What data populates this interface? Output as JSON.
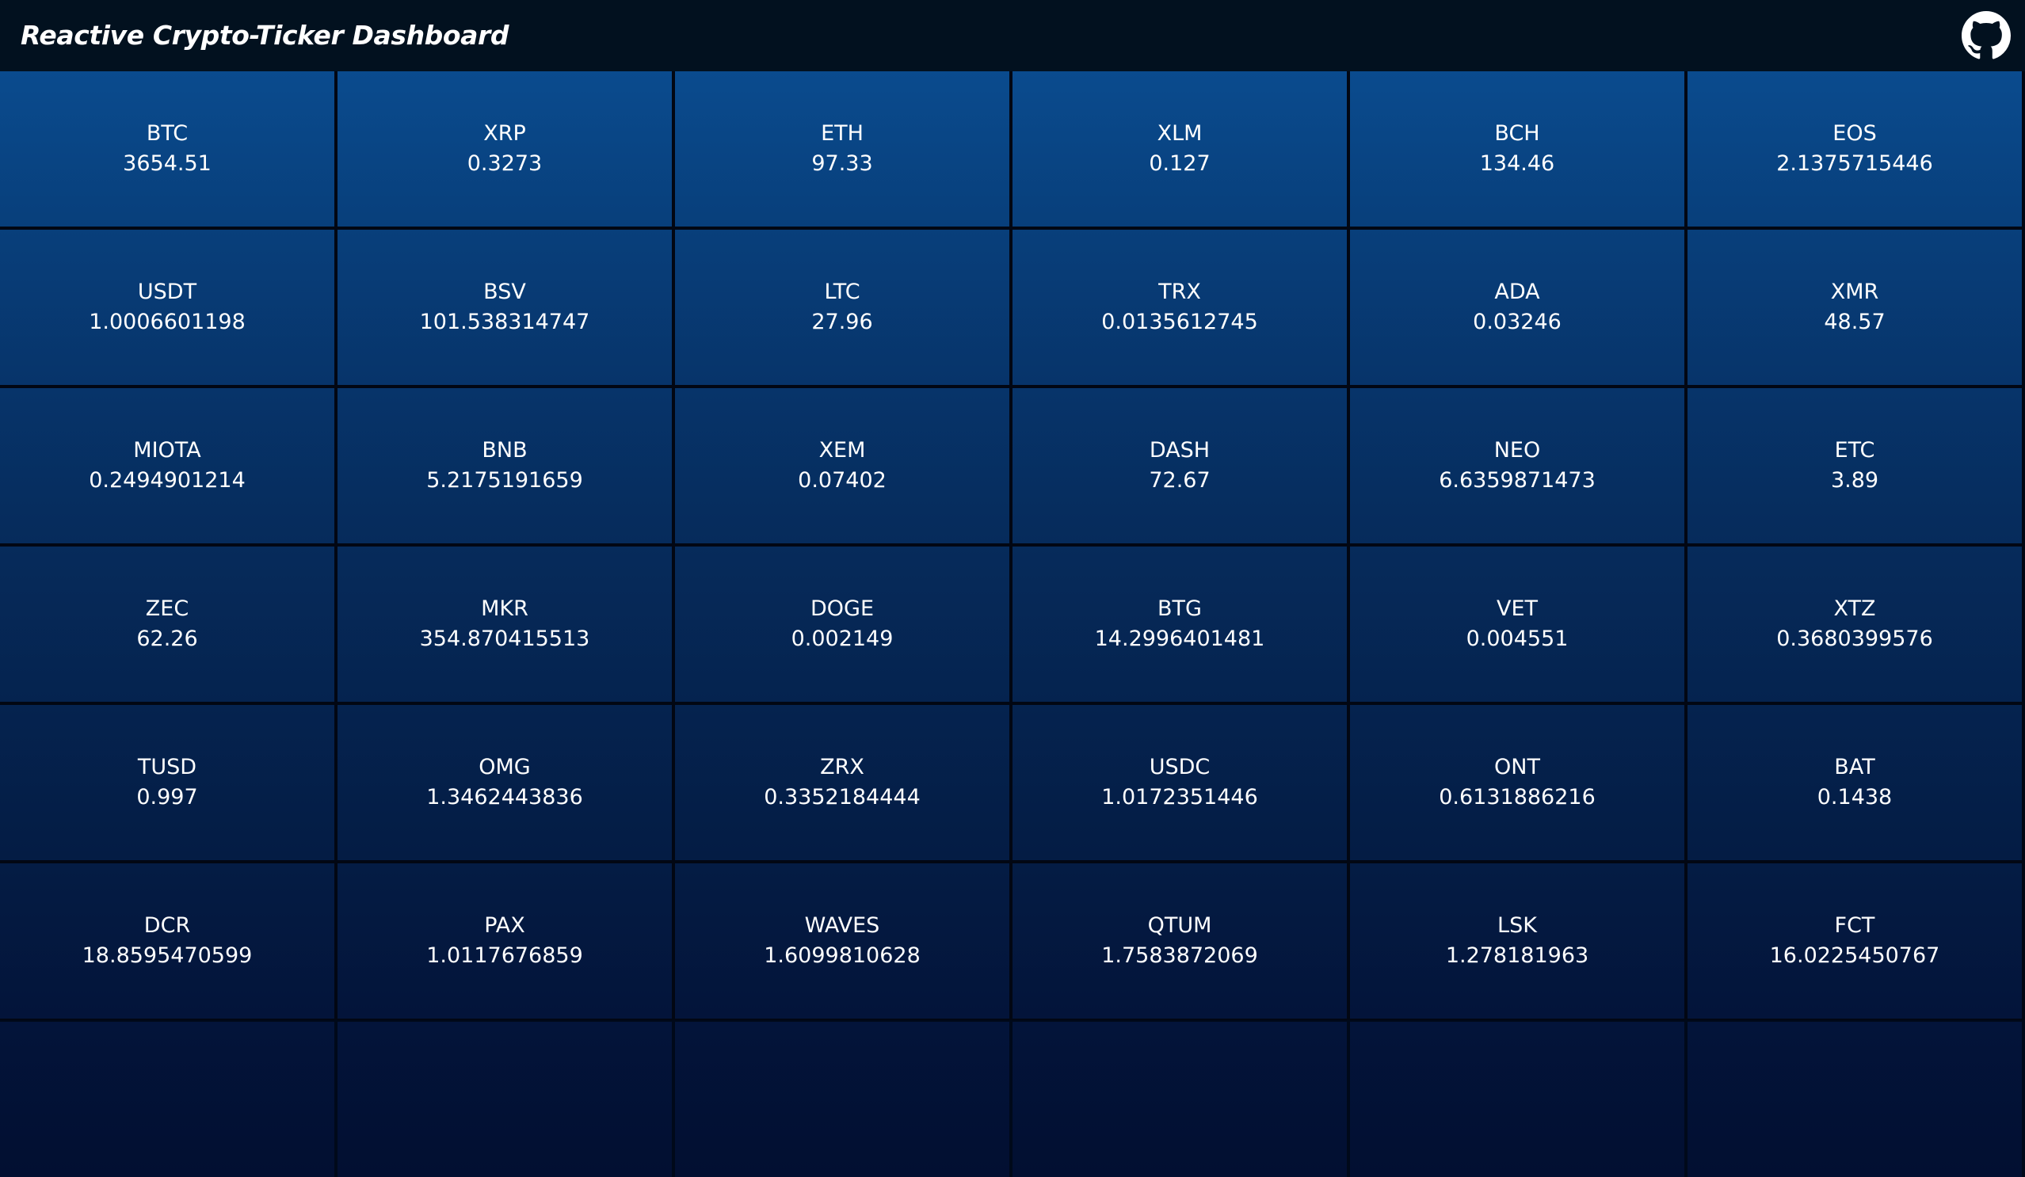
{
  "header": {
    "title": "Reactive Crypto-Ticker Dashboard",
    "github_icon": "github-icon"
  },
  "colors": {
    "header_bg": "#02111f",
    "tile_top": "#0a4b8e",
    "tile_bottom": "#020f31",
    "text": "#ffffff"
  },
  "tickers": [
    {
      "symbol": "BTC",
      "price": "3654.51"
    },
    {
      "symbol": "XRP",
      "price": "0.3273"
    },
    {
      "symbol": "ETH",
      "price": "97.33"
    },
    {
      "symbol": "XLM",
      "price": "0.127"
    },
    {
      "symbol": "BCH",
      "price": "134.46"
    },
    {
      "symbol": "EOS",
      "price": "2.1375715446"
    },
    {
      "symbol": "USDT",
      "price": "1.0006601198"
    },
    {
      "symbol": "BSV",
      "price": "101.538314747"
    },
    {
      "symbol": "LTC",
      "price": "27.96"
    },
    {
      "symbol": "TRX",
      "price": "0.0135612745"
    },
    {
      "symbol": "ADA",
      "price": "0.03246"
    },
    {
      "symbol": "XMR",
      "price": "48.57"
    },
    {
      "symbol": "MIOTA",
      "price": "0.2494901214"
    },
    {
      "symbol": "BNB",
      "price": "5.2175191659"
    },
    {
      "symbol": "XEM",
      "price": "0.07402"
    },
    {
      "symbol": "DASH",
      "price": "72.67"
    },
    {
      "symbol": "NEO",
      "price": "6.6359871473"
    },
    {
      "symbol": "ETC",
      "price": "3.89"
    },
    {
      "symbol": "ZEC",
      "price": "62.26"
    },
    {
      "symbol": "MKR",
      "price": "354.870415513"
    },
    {
      "symbol": "DOGE",
      "price": "0.002149"
    },
    {
      "symbol": "BTG",
      "price": "14.2996401481"
    },
    {
      "symbol": "VET",
      "price": "0.004551"
    },
    {
      "symbol": "XTZ",
      "price": "0.3680399576"
    },
    {
      "symbol": "TUSD",
      "price": "0.997"
    },
    {
      "symbol": "OMG",
      "price": "1.3462443836"
    },
    {
      "symbol": "ZRX",
      "price": "0.3352184444"
    },
    {
      "symbol": "USDC",
      "price": "1.0172351446"
    },
    {
      "symbol": "ONT",
      "price": "0.6131886216"
    },
    {
      "symbol": "BAT",
      "price": "0.1438"
    },
    {
      "symbol": "DCR",
      "price": "18.8595470599"
    },
    {
      "symbol": "PAX",
      "price": "1.0117676859"
    },
    {
      "symbol": "WAVES",
      "price": "1.6099810628"
    },
    {
      "symbol": "QTUM",
      "price": "1.7583872069"
    },
    {
      "symbol": "LSK",
      "price": "1.278181963"
    },
    {
      "symbol": "FCT",
      "price": "16.0225450767"
    }
  ]
}
